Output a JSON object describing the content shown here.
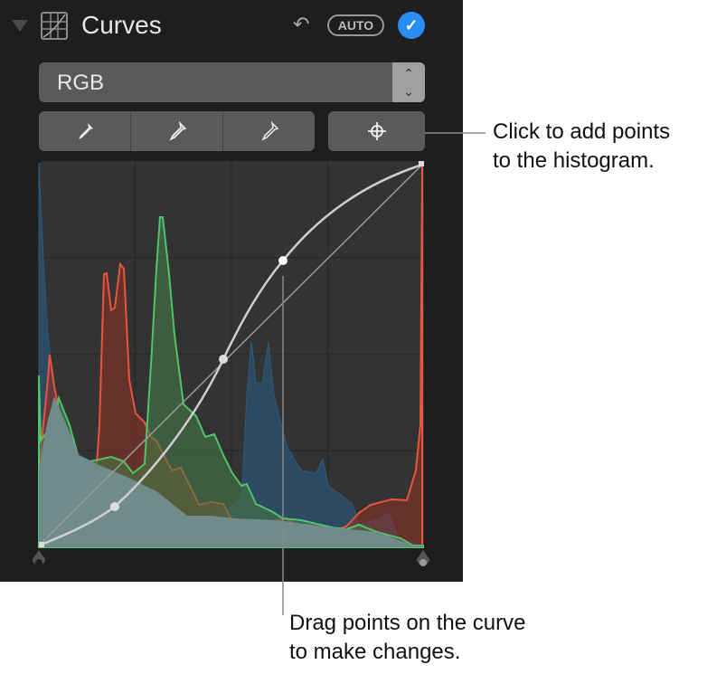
{
  "panel": {
    "title": "Curves",
    "auto_label": "AUTO",
    "channel_select": {
      "value": "RGB"
    },
    "icons": [
      "disclosure-triangle-icon",
      "curves-icon",
      "undo-icon",
      "checkmark-icon",
      "black-point-eyedropper-icon",
      "gray-point-eyedropper-icon",
      "white-point-eyedropper-icon",
      "crosshair-icon"
    ],
    "accent_color": "#2a8ef5"
  },
  "histogram": {
    "channel_colors": {
      "red": "#e8553e",
      "green": "#4fc46a",
      "blue": "#2f5a7a",
      "luminance": "#8fb0b0"
    },
    "grid": "4x4"
  },
  "callouts": {
    "add_points": [
      "Click to add points",
      "to the histogram."
    ],
    "drag_points": [
      "Drag points on the curve",
      "to make changes."
    ]
  }
}
